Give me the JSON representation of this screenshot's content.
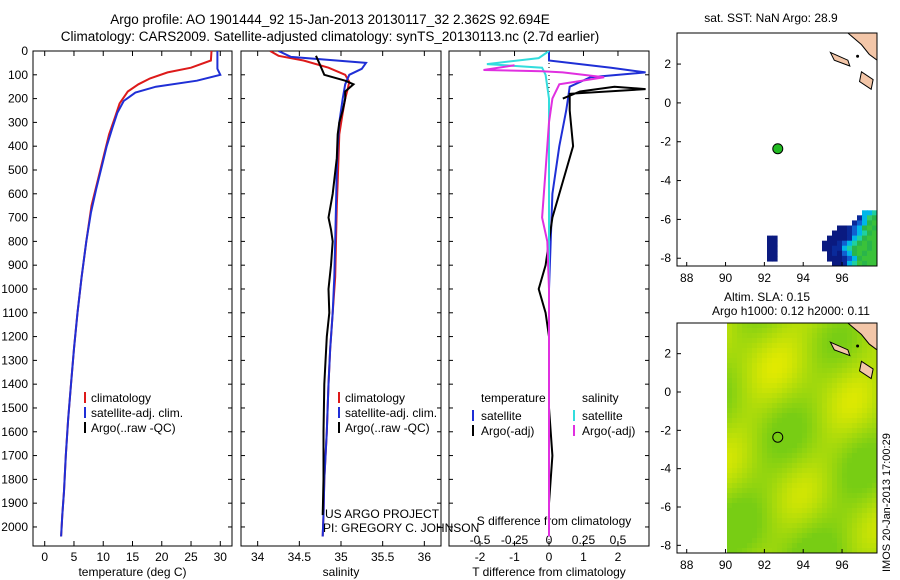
{
  "figure": {
    "title_line1": "Argo profile: AO 1901444_92 15-Jan-2013 20130117_32 2.362S 92.694E",
    "title_line2": "Climatology: CARS2009. Satellite-adjusted climatology: synTS_20130113.nc (2.7d earlier)",
    "credit_line1": "US ARGO PROJECT",
    "credit_line2": "PI: GREGORY C. JOHNSON",
    "stamp": "IMOS 20-Jan-2013 17:00:29"
  },
  "colors": {
    "climatology": "#dd1a1a",
    "satellite": "#1f2fd6",
    "argo": "#000000",
    "sat_diff": "#33dddd",
    "argo_sal_diff": "#e030e0",
    "land": "#f3c6a8",
    "float": "#22bb22"
  },
  "chart_data": [
    {
      "type": "line",
      "name": "temperature-profile",
      "xlabel": "temperature (deg C)",
      "ylabel": "",
      "xlim": [
        -2,
        32
      ],
      "ylim": [
        2080,
        0
      ],
      "x_ticks": [
        "0",
        "5",
        "10",
        "15",
        "20",
        "25",
        "30"
      ],
      "y_ticks": [
        "0",
        "100",
        "200",
        "300",
        "400",
        "500",
        "600",
        "700",
        "800",
        "900",
        "1000",
        "1100",
        "1200",
        "1300",
        "1400",
        "1500",
        "1600",
        "1700",
        "1800",
        "1900",
        "2000"
      ],
      "legend": [
        "climatology",
        "satellite-adj. clim.",
        "Argo(..raw -QC)"
      ],
      "series": [
        {
          "name": "climatology",
          "color_key": "climatology",
          "points": [
            [
              28.5,
              0
            ],
            [
              28.4,
              40
            ],
            [
              25,
              70
            ],
            [
              21,
              90
            ],
            [
              18,
              115
            ],
            [
              16,
              140
            ],
            [
              14.2,
              170
            ],
            [
              12.8,
              220
            ],
            [
              12,
              280
            ],
            [
              11,
              350
            ],
            [
              10,
              450
            ],
            [
              9,
              550
            ],
            [
              8,
              650
            ],
            [
              7.1,
              800
            ],
            [
              6.3,
              950
            ],
            [
              5.6,
              1100
            ],
            [
              5,
              1250
            ],
            [
              4.5,
              1400
            ],
            [
              4,
              1550
            ],
            [
              3.6,
              1700
            ],
            [
              3.3,
              1850
            ],
            [
              3,
              1950
            ],
            [
              2.8,
              2040
            ]
          ]
        },
        {
          "name": "satellite-adj. clim.",
          "color_key": "satellite",
          "points": [
            [
              29.5,
              0
            ],
            [
              29.5,
              75
            ],
            [
              30,
              100
            ],
            [
              26,
              125
            ],
            [
              19,
              150
            ],
            [
              15.5,
              175
            ],
            [
              13.5,
              210
            ],
            [
              12.4,
              260
            ],
            [
              11.6,
              320
            ],
            [
              10.6,
              400
            ],
            [
              9.8,
              480
            ],
            [
              8.8,
              580
            ],
            [
              7.9,
              680
            ],
            [
              7.1,
              800
            ],
            [
              6.3,
              950
            ],
            [
              5.6,
              1100
            ],
            [
              5,
              1250
            ],
            [
              4.5,
              1400
            ],
            [
              4,
              1550
            ],
            [
              3.6,
              1700
            ],
            [
              3.3,
              1850
            ],
            [
              3,
              1950
            ],
            [
              2.8,
              2040
            ]
          ]
        },
        {
          "name": "Argo(..raw -QC)",
          "color_key": "argo",
          "points": []
        }
      ]
    },
    {
      "type": "line",
      "name": "salinity-profile",
      "xlabel": "salinity",
      "xlim": [
        33.8,
        36.2
      ],
      "ylim": [
        2080,
        0
      ],
      "x_ticks": [
        "34",
        "34.5",
        "35",
        "35.5",
        "36"
      ],
      "legend": [
        "climatology",
        "satellite-adj. clim.",
        "Argo(..raw -QC)"
      ],
      "series": [
        {
          "name": "climatology",
          "color_key": "climatology",
          "points": [
            [
              34.15,
              0
            ],
            [
              34.25,
              20
            ],
            [
              34.55,
              40
            ],
            [
              34.85,
              70
            ],
            [
              35.05,
              100
            ],
            [
              35.1,
              130
            ],
            [
              35.08,
              160
            ],
            [
              35.05,
              200
            ],
            [
              35.02,
              260
            ],
            [
              34.98,
              350
            ],
            [
              34.97,
              450
            ],
            [
              34.96,
              550
            ],
            [
              34.95,
              650
            ],
            [
              34.94,
              800
            ],
            [
              34.93,
              950
            ],
            [
              34.9,
              1100
            ],
            [
              34.87,
              1250
            ],
            [
              34.85,
              1400
            ],
            [
              34.83,
              1600
            ],
            [
              34.8,
              1800
            ],
            [
              34.79,
              1950
            ],
            [
              34.78,
              2040
            ]
          ]
        },
        {
          "name": "satellite-adj. clim.",
          "color_key": "satellite",
          "points": [
            [
              34.25,
              0
            ],
            [
              34.4,
              25
            ],
            [
              35.3,
              50
            ],
            [
              35.25,
              75
            ],
            [
              35.1,
              100
            ],
            [
              35.05,
              140
            ],
            [
              35.02,
              200
            ],
            [
              34.98,
              300
            ],
            [
              34.96,
              400
            ],
            [
              34.95,
              500
            ],
            [
              34.94,
              650
            ],
            [
              34.93,
              800
            ],
            [
              34.92,
              950
            ],
            [
              34.9,
              1100
            ],
            [
              34.87,
              1250
            ],
            [
              34.85,
              1400
            ],
            [
              34.83,
              1600
            ],
            [
              34.8,
              1800
            ],
            [
              34.79,
              1950
            ],
            [
              34.78,
              2040
            ]
          ]
        },
        {
          "name": "Argo(..raw -QC)",
          "color_key": "argo",
          "points": [
            [
              34.7,
              20
            ],
            [
              34.75,
              60
            ],
            [
              34.8,
              100
            ],
            [
              35.05,
              125
            ],
            [
              35.15,
              140
            ],
            [
              35.05,
              170
            ],
            [
              35.05,
              200
            ],
            [
              35.02,
              250
            ],
            [
              34.98,
              300
            ],
            [
              34.96,
              350
            ],
            [
              34.95,
              450
            ],
            [
              34.9,
              600
            ],
            [
              34.85,
              700
            ],
            [
              34.88,
              750
            ],
            [
              34.9,
              800
            ],
            [
              34.88,
              900
            ],
            [
              34.85,
              1000
            ],
            [
              34.86,
              1100
            ],
            [
              34.83,
              1200
            ],
            [
              34.8,
              1400
            ],
            [
              34.79,
              1600
            ],
            [
              34.79,
              1800
            ],
            [
              34.78,
              1950
            ]
          ]
        }
      ]
    },
    {
      "type": "line",
      "name": "difference-profile",
      "xlabel": "T difference from climatology",
      "x2label": "S difference from climatology",
      "xlim": [
        -2.9,
        2.9
      ],
      "ylim": [
        2080,
        0
      ],
      "x_ticks": [
        "-2",
        "-1",
        "0",
        "1",
        "2"
      ],
      "x2_ticks": [
        "-0.5",
        "-0.25",
        "0",
        "0.25",
        "0.5"
      ],
      "legend_title_left": "temperature",
      "legend_title_right": "salinity",
      "legend": [
        "satellite",
        "Argo(-adj)",
        "satellite",
        "Argo(-adj)"
      ],
      "series": [
        {
          "name": "T satellite",
          "color_key": "satellite",
          "points": [
            [
              0,
              0
            ],
            [
              0,
              40
            ],
            [
              1.8,
              70
            ],
            [
              2.8,
              90
            ],
            [
              1.2,
              110
            ],
            [
              0.6,
              150
            ],
            [
              0.55,
              200
            ],
            [
              0.5,
              250
            ],
            [
              0.3,
              400
            ],
            [
              0.1,
              600
            ],
            [
              0.05,
              800
            ],
            [
              0,
              1000
            ],
            [
              0,
              2040
            ]
          ]
        },
        {
          "name": "T Argo(-adj)",
          "color_key": "argo",
          "points": [
            [
              0.4,
              200
            ],
            [
              0.9,
              170
            ],
            [
              1.9,
              150
            ],
            [
              2.8,
              160
            ],
            [
              0.6,
              180
            ],
            [
              0.6,
              250
            ],
            [
              0.7,
              400
            ],
            [
              0.5,
              500
            ],
            [
              0.1,
              700
            ],
            [
              -0.1,
              900
            ],
            [
              -0.3,
              1000
            ],
            [
              -0.1,
              1100
            ],
            [
              0,
              1200
            ],
            [
              0,
              1500
            ],
            [
              0.1,
              1700
            ],
            [
              0.05,
              1800
            ],
            [
              0,
              1900
            ]
          ]
        },
        {
          "name": "S satellite",
          "color_key": "sat_diff",
          "points": [
            [
              0,
              0
            ],
            [
              -0.3,
              30
            ],
            [
              -1.8,
              55
            ],
            [
              -0.2,
              70
            ],
            [
              -0.1,
              100
            ],
            [
              0,
              200
            ],
            [
              0,
              400
            ],
            [
              0,
              600
            ],
            [
              0,
              1000
            ],
            [
              0,
              1600
            ],
            [
              0,
              2040
            ]
          ]
        },
        {
          "name": "S Argo(-adj)",
          "color_key": "argo_sal_diff",
          "points": [
            [
              -1,
              60
            ],
            [
              -1.9,
              80
            ],
            [
              -0.2,
              85
            ],
            [
              0.4,
              90
            ],
            [
              1.6,
              110
            ],
            [
              0.3,
              140
            ],
            [
              0.1,
              200
            ],
            [
              0,
              300
            ],
            [
              -0.1,
              500
            ],
            [
              -0.2,
              700
            ],
            [
              -0.05,
              800
            ],
            [
              0,
              1000
            ],
            [
              0,
              1400
            ],
            [
              0,
              2040
            ]
          ]
        }
      ]
    },
    {
      "type": "heatmap",
      "name": "sst-map",
      "title": "sat. SST: NaN Argo: 28.9",
      "xlim": [
        87.5,
        97.8
      ],
      "ylim": [
        -8.4,
        3.6
      ],
      "x_ticks": [
        "88",
        "90",
        "92",
        "94",
        "96"
      ],
      "y_ticks": [
        "2",
        "0",
        "-2",
        "-4",
        "-6",
        "-8"
      ],
      "float_position": [
        92.69,
        -2.36
      ]
    },
    {
      "type": "heatmap",
      "name": "sla-map",
      "title_line1": "Altim. SLA: 0.15",
      "title_line2": "Argo h1000: 0.12 h2000: 0.11",
      "xlim": [
        87.5,
        97.8
      ],
      "ylim": [
        -8.4,
        3.6
      ],
      "x_ticks": [
        "88",
        "90",
        "92",
        "94",
        "96"
      ],
      "y_ticks": [
        "2",
        "0",
        "-2",
        "-4",
        "-6",
        "-8"
      ],
      "float_position": [
        92.69,
        -2.36
      ]
    }
  ]
}
